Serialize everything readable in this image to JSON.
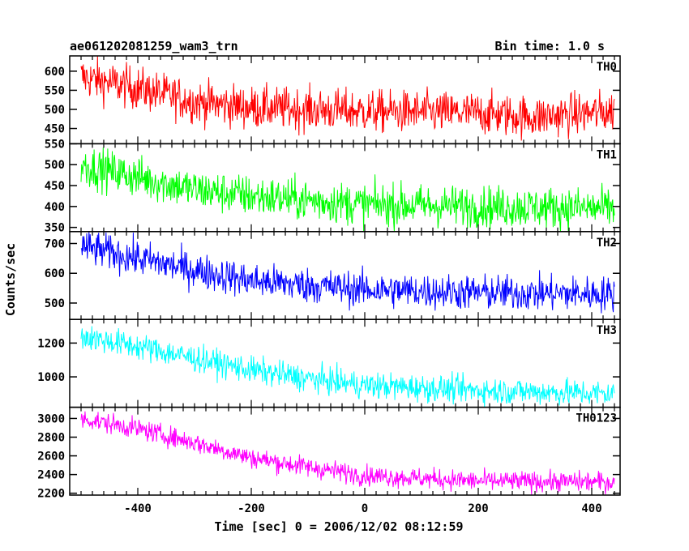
{
  "chart_data": {
    "type": "line",
    "title": "ae061202081259_wam3_trn",
    "subtitle": "Bin time: 1.0 s",
    "xlabel": "Time [sec] 0 = 2006/12/02 08:12:59",
    "ylabel": "Counts/sec",
    "xlim": [
      -520,
      450
    ],
    "xticks": [
      -400,
      -200,
      0,
      200,
      400
    ],
    "panels": [
      {
        "name": "TH0",
        "color": "#ff0000",
        "ylim": [
          410,
          640
        ],
        "yticks": [
          450,
          500,
          550,
          600
        ],
        "trend": {
          "x": [
            -500,
            -400,
            -300,
            -200,
            0,
            200,
            300,
            440
          ],
          "y": [
            585,
            555,
            520,
            505,
            495,
            490,
            480,
            495
          ]
        },
        "noise": 28
      },
      {
        "name": "TH1",
        "color": "#00ff00",
        "ylim": [
          340,
          550
        ],
        "yticks": [
          350,
          400,
          450,
          500,
          550
        ],
        "trend": {
          "x": [
            -500,
            -400,
            -300,
            -200,
            0,
            200,
            440
          ],
          "y": [
            500,
            470,
            440,
            425,
            405,
            400,
            395
          ]
        },
        "noise": 25
      },
      {
        "name": "TH2",
        "color": "#0000ff",
        "ylim": [
          445,
          740
        ],
        "yticks": [
          500,
          600,
          700
        ],
        "trend": {
          "x": [
            -500,
            -400,
            -300,
            -200,
            0,
            200,
            440
          ],
          "y": [
            690,
            650,
            610,
            575,
            545,
            535,
            530
          ]
        },
        "noise": 30
      },
      {
        "name": "TH3",
        "color": "#00ffff",
        "ylim": [
          820,
          1340
        ],
        "yticks": [
          1000,
          1200
        ],
        "trend": {
          "x": [
            -500,
            -400,
            -300,
            -200,
            -100,
            0,
            200,
            440
          ],
          "y": [
            1240,
            1180,
            1110,
            1040,
            990,
            950,
            920,
            900
          ]
        },
        "noise": 40
      },
      {
        "name": "TH0123",
        "color": "#ff00ff",
        "ylim": [
          2180,
          3120
        ],
        "yticks": [
          2200,
          2400,
          2600,
          2800,
          3000
        ],
        "trend": {
          "x": [
            -500,
            -400,
            -300,
            -200,
            -100,
            0,
            200,
            440
          ],
          "y": [
            3000,
            2890,
            2740,
            2580,
            2480,
            2390,
            2330,
            2320
          ]
        },
        "noise": 55
      }
    ]
  }
}
